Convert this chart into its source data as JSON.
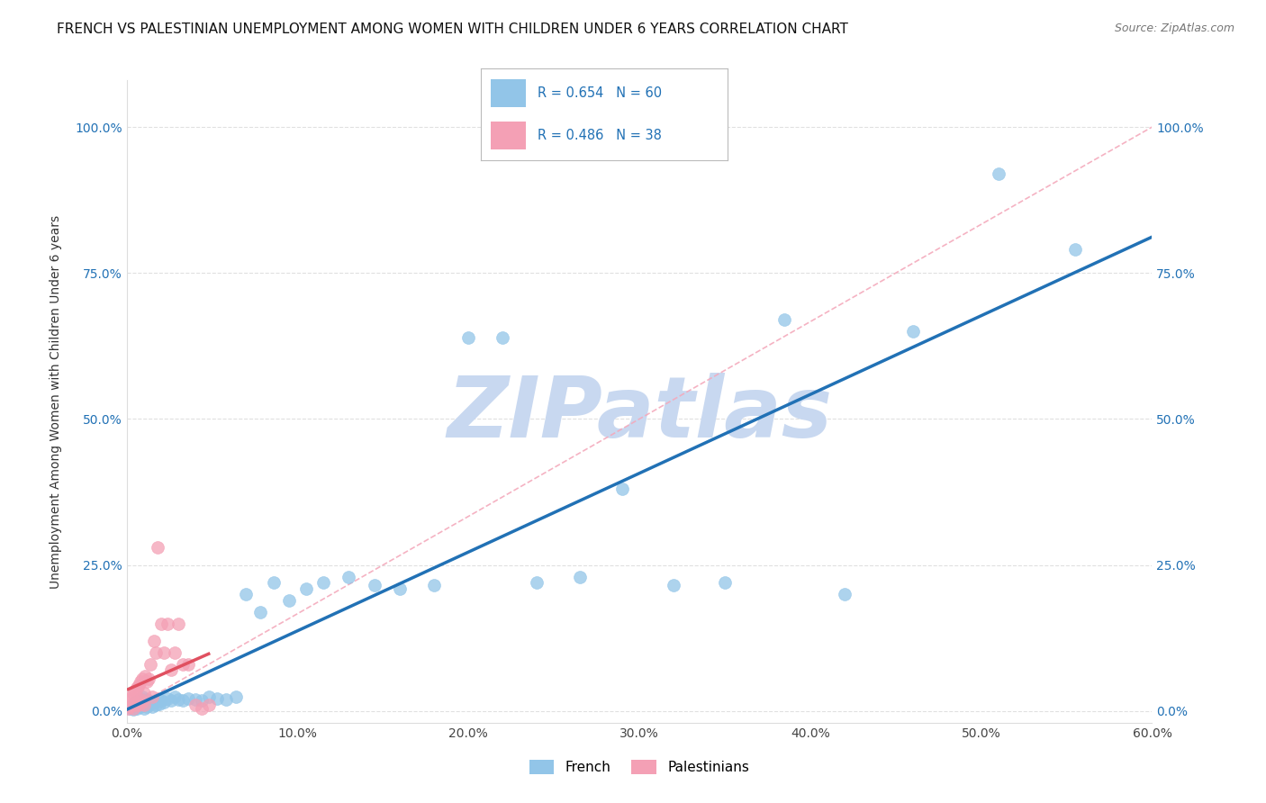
{
  "title": "FRENCH VS PALESTINIAN UNEMPLOYMENT AMONG WOMEN WITH CHILDREN UNDER 6 YEARS CORRELATION CHART",
  "source": "Source: ZipAtlas.com",
  "ylabel": "Unemployment Among Women with Children Under 6 years",
  "xlabel": "",
  "xlim": [
    0.0,
    0.6
  ],
  "ylim": [
    -0.02,
    1.08
  ],
  "yticks": [
    0.0,
    0.25,
    0.5,
    0.75,
    1.0
  ],
  "ytick_labels": [
    "0.0%",
    "25.0%",
    "50.0%",
    "75.0%",
    "100.0%"
  ],
  "xticks": [
    0.0,
    0.1,
    0.2,
    0.3,
    0.4,
    0.5,
    0.6
  ],
  "xtick_labels": [
    "0.0%",
    "10.0%",
    "20.0%",
    "30.0%",
    "40.0%",
    "50.0%",
    "60.0%"
  ],
  "french_color": "#92C5E8",
  "palestinian_color": "#F4A0B5",
  "french_line_color": "#2171B5",
  "palestinian_line_color": "#E05060",
  "diagonal_color": "#F4AABC",
  "legend_blue": "#2171B5",
  "R_french": 0.654,
  "N_french": 60,
  "R_palestinian": 0.486,
  "N_palestinian": 38,
  "watermark_text": "ZIPatlas",
  "watermark_color": "#C8D8F0",
  "background_color": "#FFFFFF",
  "grid_color": "#CCCCCC",
  "title_fontsize": 11,
  "axis_label_fontsize": 10,
  "tick_fontsize": 10,
  "source_fontsize": 9,
  "french_x": [
    0.002,
    0.003,
    0.004,
    0.005,
    0.005,
    0.006,
    0.007,
    0.007,
    0.008,
    0.008,
    0.009,
    0.009,
    0.01,
    0.01,
    0.011,
    0.012,
    0.012,
    0.013,
    0.014,
    0.015,
    0.016,
    0.017,
    0.018,
    0.019,
    0.02,
    0.022,
    0.024,
    0.026,
    0.028,
    0.03,
    0.033,
    0.036,
    0.04,
    0.044,
    0.048,
    0.053,
    0.058,
    0.064,
    0.07,
    0.078,
    0.086,
    0.095,
    0.105,
    0.115,
    0.13,
    0.145,
    0.16,
    0.18,
    0.2,
    0.22,
    0.24,
    0.265,
    0.29,
    0.32,
    0.35,
    0.385,
    0.42,
    0.46,
    0.51,
    0.555
  ],
  "french_y": [
    0.005,
    0.008,
    0.003,
    0.01,
    0.015,
    0.005,
    0.012,
    0.018,
    0.008,
    0.022,
    0.01,
    0.025,
    0.005,
    0.015,
    0.01,
    0.02,
    0.008,
    0.018,
    0.012,
    0.007,
    0.015,
    0.01,
    0.02,
    0.012,
    0.018,
    0.015,
    0.022,
    0.018,
    0.025,
    0.02,
    0.018,
    0.022,
    0.02,
    0.018,
    0.025,
    0.022,
    0.02,
    0.025,
    0.2,
    0.17,
    0.22,
    0.19,
    0.21,
    0.22,
    0.23,
    0.215,
    0.21,
    0.215,
    0.64,
    0.64,
    0.22,
    0.23,
    0.38,
    0.215,
    0.22,
    0.67,
    0.2,
    0.65,
    0.92,
    0.79
  ],
  "palestinian_x": [
    0.001,
    0.002,
    0.002,
    0.003,
    0.003,
    0.004,
    0.004,
    0.005,
    0.005,
    0.006,
    0.006,
    0.007,
    0.007,
    0.008,
    0.008,
    0.009,
    0.009,
    0.01,
    0.01,
    0.011,
    0.012,
    0.013,
    0.014,
    0.015,
    0.016,
    0.017,
    0.018,
    0.02,
    0.022,
    0.024,
    0.026,
    0.028,
    0.03,
    0.033,
    0.036,
    0.04,
    0.044,
    0.048
  ],
  "palestinian_y": [
    0.005,
    0.008,
    0.02,
    0.01,
    0.025,
    0.005,
    0.03,
    0.01,
    0.035,
    0.015,
    0.04,
    0.01,
    0.045,
    0.02,
    0.05,
    0.015,
    0.055,
    0.01,
    0.03,
    0.06,
    0.05,
    0.055,
    0.08,
    0.025,
    0.12,
    0.1,
    0.28,
    0.15,
    0.1,
    0.15,
    0.07,
    0.1,
    0.15,
    0.08,
    0.08,
    0.01,
    0.005,
    0.01
  ]
}
